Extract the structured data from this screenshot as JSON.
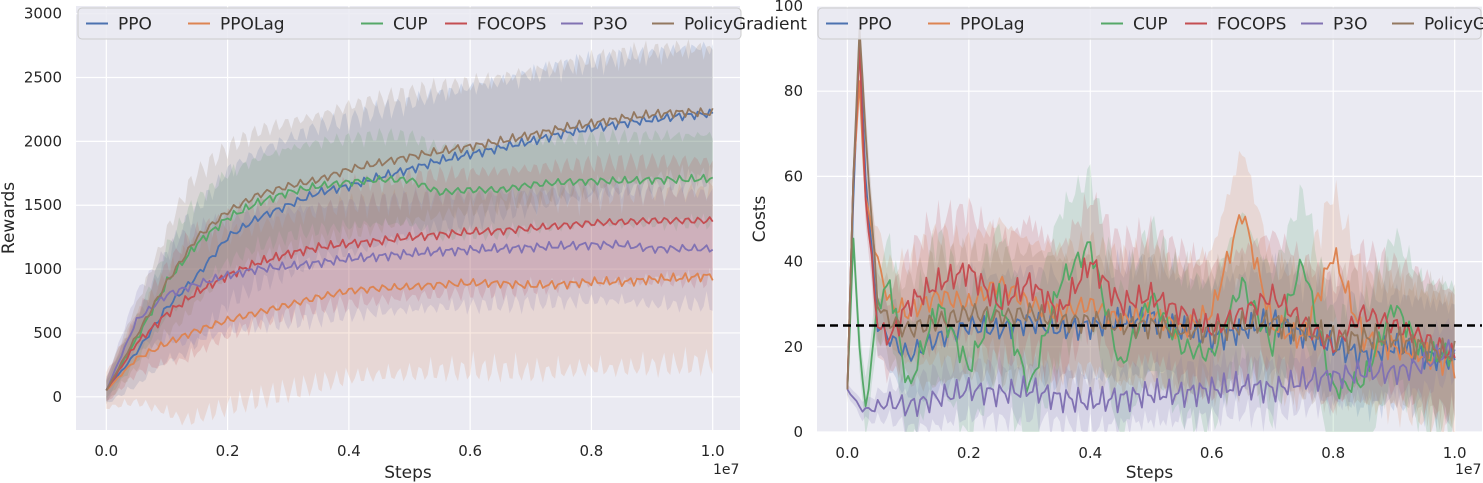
{
  "chart_data": [
    {
      "type": "line",
      "xlabel": "Steps",
      "ylabel": "Rewards",
      "x_offset_text": "1e7",
      "xlim": [
        -0.05,
        1.045
      ],
      "ylim": [
        -260,
        3060
      ],
      "xticks": [
        0.0,
        0.2,
        0.4,
        0.6,
        0.8,
        1.0
      ],
      "xtick_labels": [
        "0.0",
        "0.2",
        "0.4",
        "0.6",
        "0.8",
        "1.0"
      ],
      "yticks": [
        0,
        500,
        1000,
        1500,
        2000,
        2500,
        3000
      ],
      "ytick_labels": [
        "0",
        "500",
        "1000",
        "1500",
        "2000",
        "2500",
        "3000"
      ],
      "grid": true,
      "legend_position": "top",
      "x": [
        0.0,
        0.05,
        0.1,
        0.15,
        0.2,
        0.25,
        0.3,
        0.35,
        0.4,
        0.45,
        0.5,
        0.55,
        0.6,
        0.65,
        0.7,
        0.75,
        0.8,
        0.85,
        0.9,
        0.95,
        1.0
      ],
      "series": [
        {
          "name": "PPO",
          "values": [
            50,
            350,
            700,
            950,
            1250,
            1400,
            1500,
            1600,
            1650,
            1720,
            1780,
            1850,
            1900,
            1950,
            2000,
            2060,
            2100,
            2140,
            2170,
            2200,
            2220
          ],
          "band": 500
        },
        {
          "name": "PPOLag",
          "values": [
            50,
            300,
            420,
            520,
            600,
            660,
            720,
            780,
            830,
            850,
            860,
            880,
            890,
            890,
            870,
            880,
            900,
            900,
            920,
            930,
            950
          ],
          "band": 650
        },
        {
          "name": "CUP",
          "values": [
            50,
            450,
            900,
            1200,
            1400,
            1520,
            1600,
            1650,
            1680,
            1700,
            1700,
            1600,
            1620,
            1620,
            1660,
            1680,
            1690,
            1690,
            1700,
            1700,
            1710
          ],
          "band": 330
        },
        {
          "name": "FOCOPS",
          "values": [
            50,
            420,
            650,
            820,
            950,
            1050,
            1120,
            1170,
            1200,
            1220,
            1250,
            1270,
            1290,
            1300,
            1320,
            1340,
            1360,
            1370,
            1380,
            1380,
            1380
          ],
          "band": 450
        },
        {
          "name": "P3O",
          "values": [
            50,
            600,
            800,
            880,
            950,
            1000,
            1020,
            1050,
            1080,
            1100,
            1120,
            1140,
            1150,
            1160,
            1170,
            1180,
            1190,
            1190,
            1160,
            1160,
            1160
          ],
          "band": 420
        },
        {
          "name": "PolicyGradient",
          "values": [
            50,
            480,
            900,
            1250,
            1450,
            1580,
            1650,
            1700,
            1780,
            1830,
            1880,
            1920,
            1960,
            2000,
            2050,
            2100,
            2140,
            2180,
            2210,
            2230,
            2220
          ],
          "band": 480
        }
      ]
    },
    {
      "type": "line",
      "xlabel": "Steps",
      "ylabel": "Costs",
      "x_offset_text": "1e7",
      "xlim": [
        -0.05,
        1.045
      ],
      "ylim": [
        0,
        100
      ],
      "xticks": [
        0.0,
        0.2,
        0.4,
        0.6,
        0.8,
        1.0
      ],
      "xtick_labels": [
        "0.0",
        "0.2",
        "0.4",
        "0.6",
        "0.8",
        "1.0"
      ],
      "yticks": [
        0,
        20,
        40,
        60,
        80,
        100
      ],
      "ytick_labels": [
        "0",
        "20",
        "40",
        "60",
        "80",
        "100"
      ],
      "grid": true,
      "legend_position": "top",
      "threshold": 25,
      "x": [
        0.0,
        0.01,
        0.02,
        0.03,
        0.05,
        0.07,
        0.1,
        0.15,
        0.2,
        0.25,
        0.3,
        0.35,
        0.4,
        0.45,
        0.5,
        0.55,
        0.6,
        0.65,
        0.7,
        0.75,
        0.8,
        0.85,
        0.9,
        0.95,
        1.0
      ],
      "series": [
        {
          "name": "PPO",
          "values": [
            10,
            55,
            92,
            60,
            25,
            22,
            18,
            22,
            25,
            24,
            26,
            24,
            25,
            26,
            27,
            24,
            22,
            24,
            26,
            23,
            20,
            18,
            20,
            18,
            17
          ],
          "band": 12
        },
        {
          "name": "PPOLag",
          "values": [
            10,
            60,
            82,
            55,
            40,
            30,
            28,
            32,
            30,
            35,
            30,
            28,
            30,
            26,
            28,
            24,
            28,
            52,
            25,
            22,
            42,
            22,
            20,
            18,
            16
          ],
          "band": 14
        },
        {
          "name": "CUP",
          "values": [
            10,
            45,
            20,
            5,
            30,
            35,
            10,
            30,
            15,
            32,
            10,
            35,
            44,
            15,
            32,
            20,
            18,
            35,
            20,
            40,
            10,
            12,
            30,
            18,
            18
          ],
          "band": 16
        },
        {
          "name": "FOCOPS",
          "values": [
            10,
            60,
            90,
            55,
            25,
            22,
            30,
            35,
            38,
            30,
            35,
            28,
            40,
            30,
            32,
            28,
            24,
            28,
            32,
            26,
            20,
            28,
            25,
            22,
            18
          ],
          "band": 14
        },
        {
          "name": "P3O",
          "values": [
            10,
            8,
            6,
            5,
            6,
            7,
            6,
            8,
            10,
            9,
            10,
            8,
            7,
            8,
            9,
            9,
            10,
            11,
            10,
            12,
            13,
            14,
            14,
            16,
            20
          ],
          "band": 6
        },
        {
          "name": "PolicyGradient",
          "values": [
            10,
            60,
            95,
            70,
            30,
            26,
            24,
            26,
            28,
            27,
            28,
            26,
            26,
            25,
            25,
            24,
            24,
            25,
            26,
            24,
            22,
            22,
            22,
            20,
            18
          ],
          "band": 14
        }
      ]
    }
  ],
  "colors": {
    "PPO": "#4c72b0",
    "PPOLag": "#dd8452",
    "CUP": "#55a868",
    "FOCOPS": "#c44e52",
    "P3O": "#8172b3",
    "PolicyGradient": "#937860",
    "plot_background": "#eaeaf2",
    "grid": "#ffffff",
    "threshold": "#000000"
  }
}
